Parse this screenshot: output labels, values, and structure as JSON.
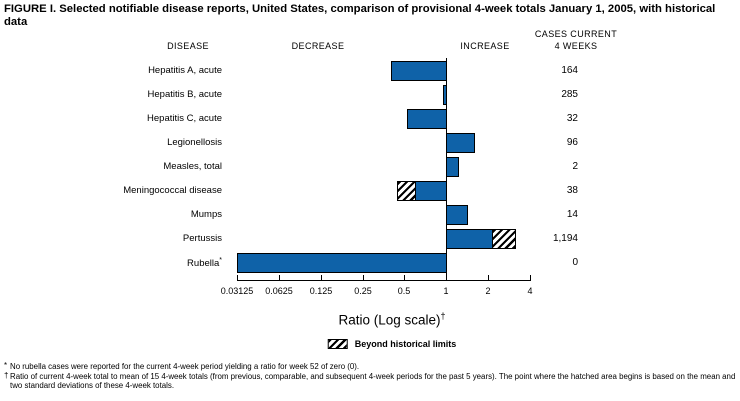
{
  "title": "FIGURE I. Selected notifiable disease reports, United States, comparison of provisional 4-week totals January 1, 2005, with historical data",
  "header": {
    "disease": "DISEASE",
    "decrease": "DECREASE",
    "increase": "INCREASE",
    "cases_line1": "CASES CURRENT",
    "cases_line2": "4 WEEKS"
  },
  "chart_data": {
    "type": "bar",
    "orientation": "horizontal",
    "scale": "log2",
    "title": "Selected notifiable disease reports, comparison of provisional 4-week totals January 1, 2005, with historical data",
    "xlabel": "Ratio (Log scale)",
    "xlabel_note_marker": "†",
    "xlim": [
      0.03125,
      4
    ],
    "baseline": 1,
    "grid": false,
    "tick_values": [
      0.03125,
      0.0625,
      0.125,
      0.25,
      0.5,
      1,
      2,
      4
    ],
    "tick_labels": [
      "0.03125",
      "0.0625",
      "0.125",
      "0.25",
      "0.5",
      "1",
      "2",
      "4"
    ],
    "legend": {
      "swatch": "hatched",
      "label": "Beyond historical limits",
      "position": "bottom-center"
    },
    "rows": [
      {
        "disease": "Hepatitis A, acute",
        "note_marker": "",
        "ratio": 0.4,
        "historical_limit": null,
        "direction": "decrease",
        "cases": "164"
      },
      {
        "disease": "Hepatitis B, acute",
        "note_marker": "",
        "ratio": 0.95,
        "historical_limit": null,
        "direction": "decrease",
        "cases": "285"
      },
      {
        "disease": "Hepatitis C, acute",
        "note_marker": "",
        "ratio": 0.52,
        "historical_limit": null,
        "direction": "decrease",
        "cases": "32"
      },
      {
        "disease": "Legionellosis",
        "note_marker": "",
        "ratio": 1.58,
        "historical_limit": null,
        "direction": "increase",
        "cases": "96"
      },
      {
        "disease": "Measles, total",
        "note_marker": "",
        "ratio": 1.22,
        "historical_limit": null,
        "direction": "increase",
        "cases": "2"
      },
      {
        "disease": "Meningococcal disease",
        "note_marker": "",
        "ratio": 0.44,
        "historical_limit": 0.6,
        "direction": "decrease",
        "cases": "38"
      },
      {
        "disease": "Mumps",
        "note_marker": "",
        "ratio": 1.4,
        "historical_limit": null,
        "direction": "increase",
        "cases": "14"
      },
      {
        "disease": "Pertussis",
        "note_marker": "",
        "ratio": 3.17,
        "historical_limit": 2.13,
        "direction": "increase",
        "cases": "1,194"
      },
      {
        "disease": "Rubella",
        "note_marker": "*",
        "ratio": 0.03125,
        "historical_limit": null,
        "direction": "decrease",
        "cases": "0"
      }
    ]
  },
  "colors": {
    "bar": "#0f62a8",
    "bar_border": "#000000",
    "hatch_fg": "#000000",
    "background": "#ffffff"
  },
  "footnotes": [
    {
      "marker": "*",
      "text": "No rubella cases were reported for the current 4-week period yielding a ratio for week 52 of zero (0)."
    },
    {
      "marker": "†",
      "text": "Ratio of current 4-week total to mean of 15 4-week totals (from previous, comparable, and subsequent 4-week periods for the past 5 years). The point where the hatched area begins is based on the mean and two standard deviations of these 4-week totals."
    }
  ]
}
